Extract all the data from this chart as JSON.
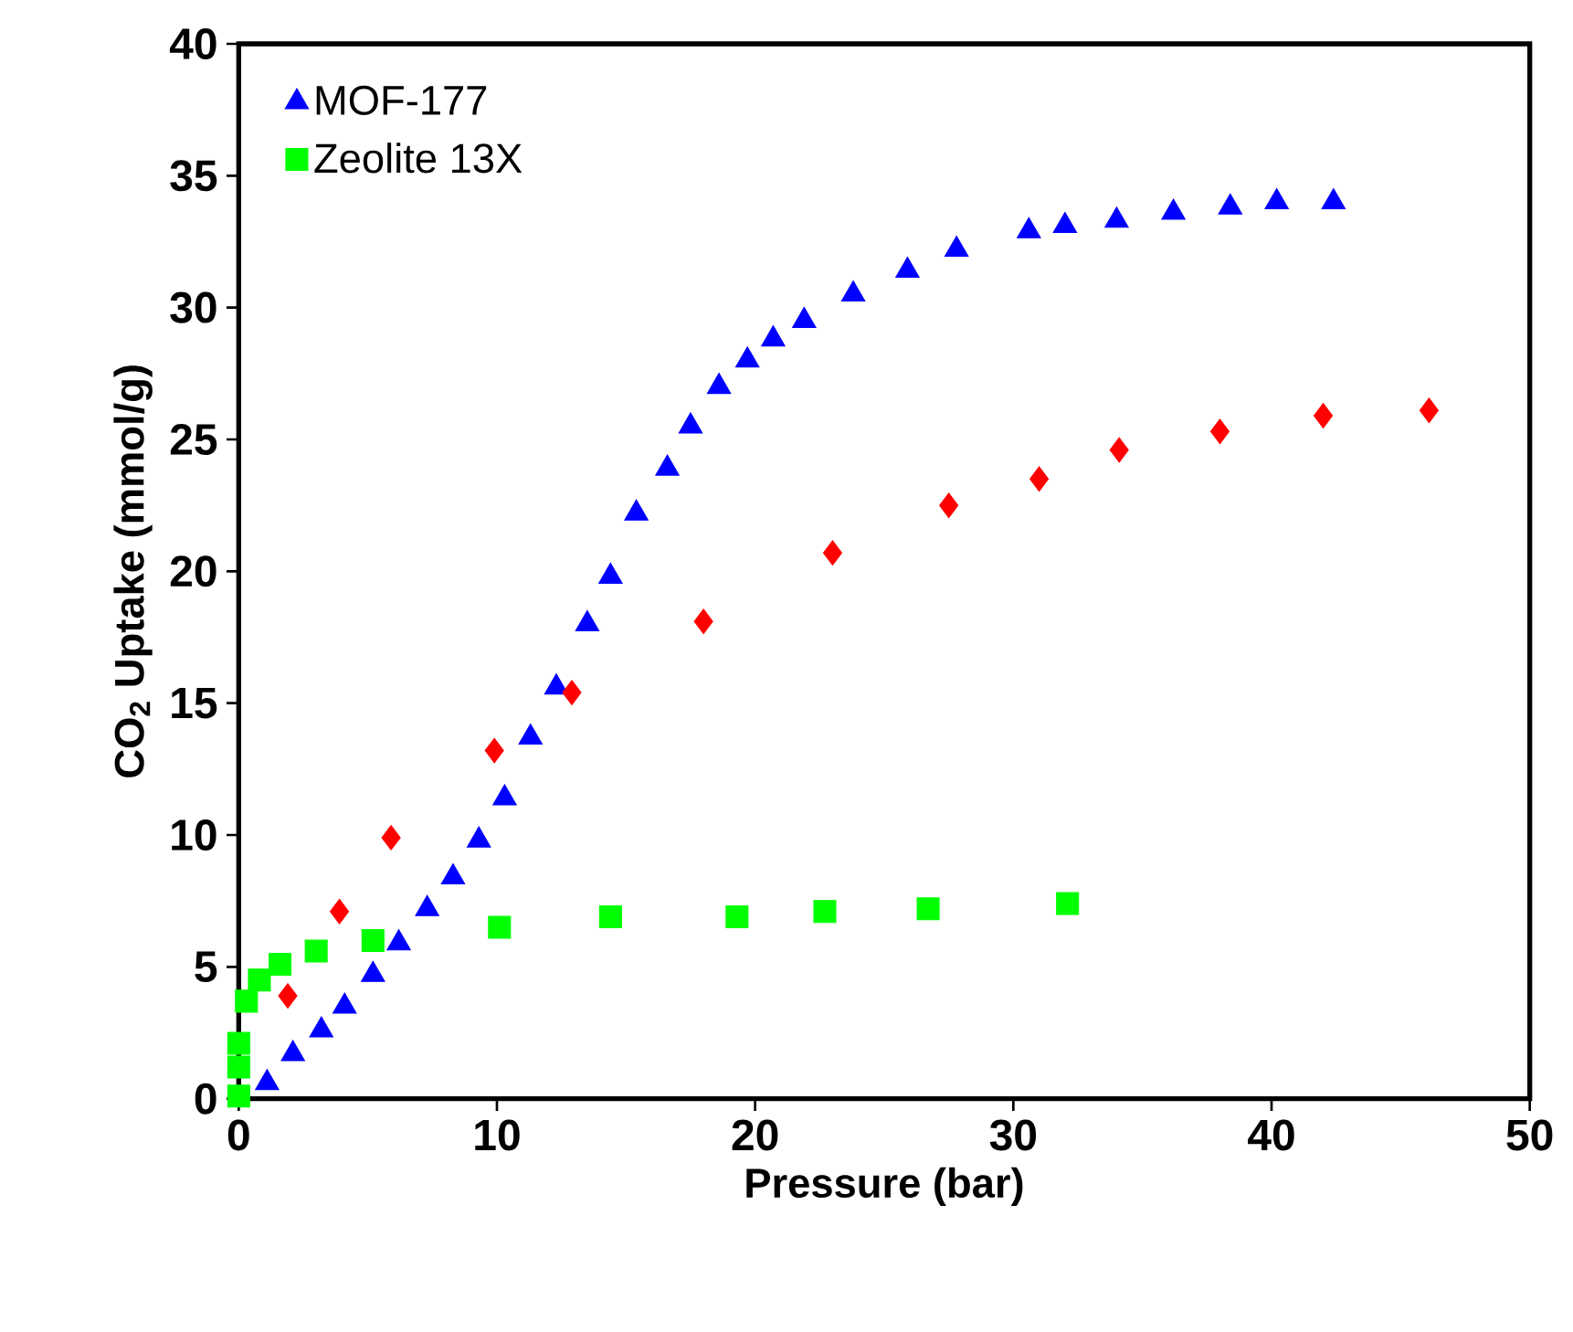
{
  "chart_data": {
    "type": "scatter",
    "xlabel": "Pressure (bar)",
    "ylabel": "CO$_{2}$ Uptake (mmol/g)",
    "xlim": [
      0,
      50
    ],
    "ylim": [
      0,
      40
    ],
    "xticks": [
      0,
      10,
      20,
      30,
      40,
      50
    ],
    "yticks": [
      0,
      5,
      10,
      15,
      20,
      25,
      30,
      35,
      40
    ],
    "grid": false,
    "legend": "top left",
    "series": [
      {
        "name": "MOF-177",
        "color": "#0000ff",
        "marker": "triangle",
        "x": [
          1.1,
          2.1,
          3.2,
          4.1,
          5.2,
          6.2,
          7.3,
          8.3,
          9.3,
          10.3,
          11.3,
          12.3,
          13.5,
          14.4,
          15.4,
          16.6,
          17.5,
          18.6,
          19.7,
          20.7,
          21.9,
          23.8,
          25.9,
          27.8,
          30.6,
          32.0,
          34.0,
          36.2,
          38.4,
          40.2,
          42.4
        ],
        "values": [
          0.6,
          1.7,
          2.6,
          3.5,
          4.7,
          5.9,
          7.2,
          8.4,
          9.8,
          11.4,
          13.7,
          15.6,
          18.0,
          19.8,
          22.2,
          23.9,
          25.5,
          27.0,
          28.0,
          28.8,
          29.5,
          30.5,
          31.4,
          32.2,
          32.9,
          33.1,
          33.3,
          33.6,
          33.8,
          34.0,
          34.0
        ]
      },
      {
        "color": "#ff0000",
        "marker": "diamond",
        "x": [
          1.9,
          3.9,
          5.9,
          9.9,
          12.9,
          18.0,
          23.0,
          27.5,
          31.0,
          34.1,
          38.0,
          42.0,
          46.1
        ],
        "values": [
          3.9,
          7.1,
          9.9,
          13.2,
          15.4,
          18.1,
          20.7,
          22.5,
          23.5,
          24.6,
          25.3,
          25.9,
          26.1
        ]
      },
      {
        "name": "Zeolite 13X",
        "color": "#00ff00",
        "marker": "square",
        "x": [
          0,
          0,
          0,
          0.3,
          0.8,
          1.6,
          3.0,
          5.2,
          10.1,
          14.4,
          19.3,
          22.7,
          26.7,
          32.1
        ],
        "values": [
          0.1,
          1.2,
          2.1,
          3.7,
          4.5,
          5.1,
          5.6,
          6.0,
          6.5,
          6.9,
          6.9,
          7.1,
          7.2,
          7.4
        ]
      }
    ]
  }
}
